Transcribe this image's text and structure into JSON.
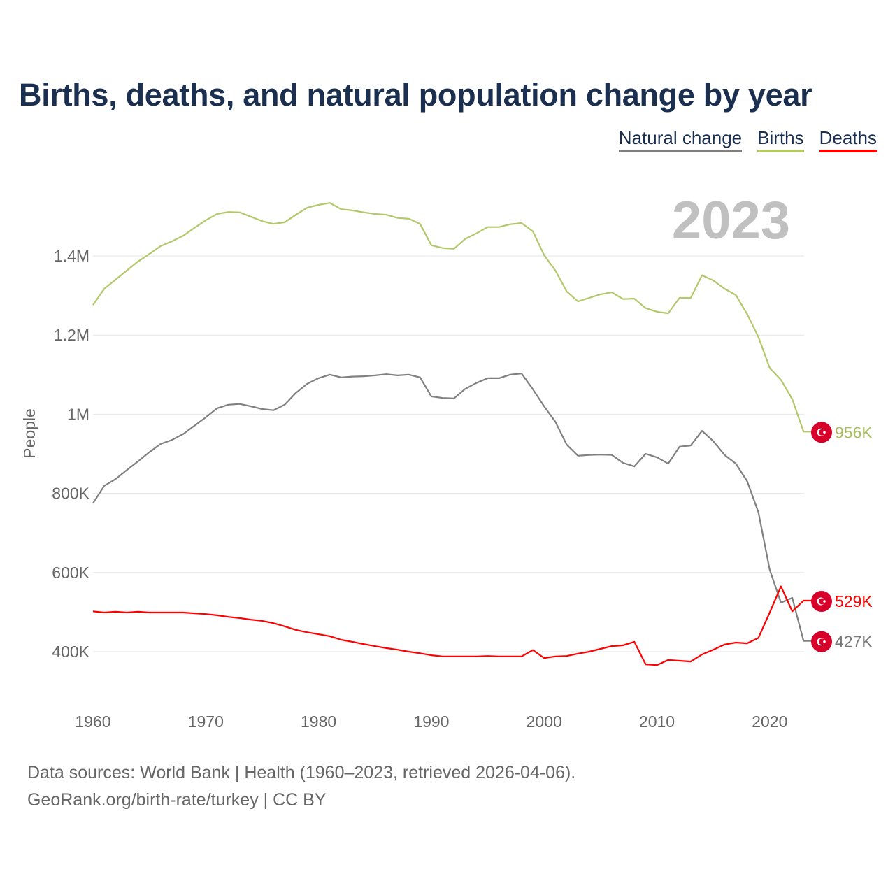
{
  "chart_data": {
    "type": "line",
    "title": "Births, deaths, and natural population change by year",
    "ylabel": "People",
    "xlabel": "",
    "year_overlay": "2023",
    "ylim": [
      280000,
      1560000
    ],
    "xlim": [
      1960,
      2023
    ],
    "y_ticks": [
      {
        "v": 400000,
        "label": "400K"
      },
      {
        "v": 600000,
        "label": "600K"
      },
      {
        "v": 800000,
        "label": "800K"
      },
      {
        "v": 1000000,
        "label": "1M"
      },
      {
        "v": 1200000,
        "label": "1.2M"
      },
      {
        "v": 1400000,
        "label": "1.4M"
      }
    ],
    "x_ticks": [
      1960,
      1970,
      1980,
      1990,
      2000,
      2010,
      2020
    ],
    "grid": true,
    "legend_position": "top-right",
    "x": [
      1960,
      1961,
      1962,
      1963,
      1964,
      1965,
      1966,
      1967,
      1968,
      1969,
      1970,
      1971,
      1972,
      1973,
      1974,
      1975,
      1976,
      1977,
      1978,
      1979,
      1980,
      1981,
      1982,
      1983,
      1984,
      1985,
      1986,
      1987,
      1988,
      1989,
      1990,
      1991,
      1992,
      1993,
      1994,
      1995,
      1996,
      1997,
      1998,
      1999,
      2000,
      2001,
      2002,
      2003,
      2004,
      2005,
      2006,
      2007,
      2008,
      2009,
      2010,
      2011,
      2012,
      2013,
      2014,
      2015,
      2016,
      2017,
      2018,
      2019,
      2020,
      2021,
      2022,
      2023
    ],
    "series": [
      {
        "name": "Natural change",
        "color": "#808080",
        "end_label": "427K",
        "values": [
          775,
          819,
          836,
          859,
          881,
          904,
          925,
          935,
          950,
          971,
          992,
          1015,
          1024,
          1026,
          1020,
          1013,
          1010,
          1024,
          1054,
          1077,
          1091,
          1100,
          1093,
          1095,
          1096,
          1098,
          1101,
          1098,
          1100,
          1093,
          1045,
          1041,
          1040,
          1064,
          1079,
          1091,
          1091,
          1100,
          1103,
          1063,
          1020,
          981,
          923,
          895,
          897,
          898,
          897,
          877,
          868,
          900,
          891,
          875,
          918,
          921,
          958,
          932,
          897,
          875,
          831,
          752,
          607,
          524,
          536,
          427
        ]
      },
      {
        "name": "Births",
        "color": "#b3c76b",
        "end_label": "956K",
        "values": [
          1276,
          1317,
          1340,
          1363,
          1386,
          1405,
          1425,
          1437,
          1451,
          1471,
          1490,
          1506,
          1511,
          1510,
          1499,
          1488,
          1481,
          1485,
          1504,
          1522,
          1529,
          1534,
          1518,
          1515,
          1510,
          1506,
          1504,
          1496,
          1494,
          1481,
          1427,
          1420,
          1418,
          1443,
          1457,
          1473,
          1473,
          1480,
          1483,
          1462,
          1402,
          1363,
          1310,
          1285,
          1294,
          1303,
          1308,
          1291,
          1292,
          1268,
          1259,
          1255,
          1294,
          1294,
          1351,
          1338,
          1317,
          1301,
          1253,
          1195,
          1117,
          1087,
          1038,
          956
        ]
      },
      {
        "name": "Deaths",
        "color": "#ff0000",
        "end_label": "529K",
        "values": [
          502,
          499,
          501,
          499,
          501,
          499,
          499,
          499,
          499,
          497,
          495,
          492,
          488,
          485,
          481,
          478,
          472,
          464,
          455,
          449,
          444,
          439,
          430,
          425,
          419,
          414,
          409,
          405,
          400,
          396,
          391,
          388,
          388,
          388,
          388,
          389,
          388,
          388,
          388,
          404,
          384,
          388,
          389,
          395,
          400,
          407,
          414,
          416,
          425,
          368,
          366,
          379,
          377,
          375,
          393,
          405,
          418,
          423,
          421,
          435,
          499,
          565,
          502,
          529
        ]
      }
    ],
    "value_unit": "thousands"
  },
  "footer": {
    "line1": "Data sources: World Bank | Health (1960–2023, retrieved 2026-04-06).",
    "line2": "GeoRank.org/birth-rate/turkey | CC BY"
  }
}
